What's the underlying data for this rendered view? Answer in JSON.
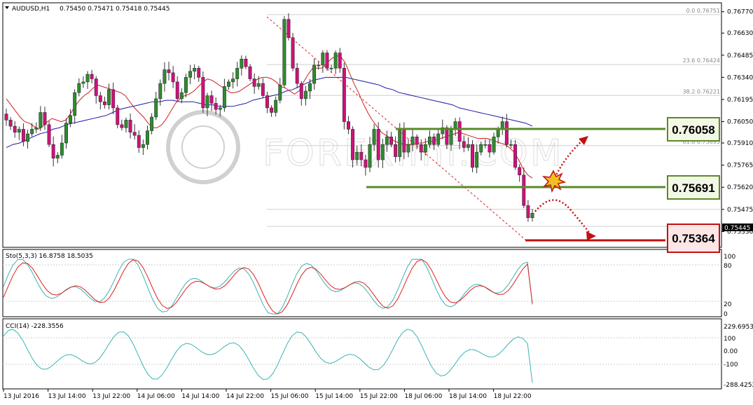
{
  "header": {
    "symbol_tf": "AUDUSD,H1",
    "ohlc": "0.75450 0.75471 0.75418 0.75445"
  },
  "watermark": "FOREXimf.COM",
  "levels": [
    {
      "label": "0.76058",
      "value": 0.76058,
      "role": "resistance",
      "color": "#5a8a2a"
    },
    {
      "label": "0.75691",
      "value": 0.75691,
      "role": "support",
      "color": "#5a8a2a"
    },
    {
      "label": "0.75364",
      "value": 0.75364,
      "role": "target",
      "color": "#c01010"
    }
  ],
  "current_price_label": "0.75445",
  "fibonacci": [
    {
      "label": "0.0  0.76751",
      "value": 0.76751
    },
    {
      "label": "23.6  0.76424",
      "value": 0.76424
    },
    {
      "label": "38.2  0.76221",
      "value": 0.76221
    },
    {
      "label": "61.8  0.75893",
      "value": 0.75893
    }
  ],
  "stochastic": {
    "label": "Sto(5,3,3) 16.8758 18.5035",
    "levels": [
      "100",
      "80",
      "20",
      "0"
    ]
  },
  "cci": {
    "label": "CCI(14) -228.3556",
    "levels": [
      "229.6953",
      "100",
      "0.00",
      "-100",
      "-288.4252"
    ]
  },
  "chart_data": {
    "type": "candlestick",
    "title": "AUDUSD,H1",
    "ylim": [
      0.7524,
      0.7681
    ],
    "y_ticks": [
      "0.76770",
      "0.76630",
      "0.76485",
      "0.76340",
      "0.76195",
      "0.76050",
      "0.75910",
      "0.75765",
      "0.75620",
      "0.75475",
      "0.75330"
    ],
    "x_ticks": [
      "13 Jul 2016",
      "13 Jul 14:00",
      "13 Jul 22:00",
      "14 Jul 06:00",
      "14 Jul 14:00",
      "14 Jul 22:00",
      "15 Jul 06:00",
      "15 Jul 14:00",
      "15 Jul 22:00",
      "18 Jul 06:00",
      "18 Jul 14:00",
      "18 Jul 22:00"
    ],
    "series": [
      {
        "name": "Close",
        "values": [
          0.7606,
          0.7602,
          0.7598,
          0.76,
          0.7592,
          0.7597,
          0.76,
          0.7601,
          0.7611,
          0.7603,
          0.759,
          0.7581,
          0.7583,
          0.7591,
          0.7604,
          0.7609,
          0.7624,
          0.763,
          0.7631,
          0.7636,
          0.7633,
          0.7622,
          0.7618,
          0.7616,
          0.7626,
          0.7614,
          0.7603,
          0.7601,
          0.7606,
          0.7598,
          0.7596,
          0.7588,
          0.759,
          0.7599,
          0.7608,
          0.762,
          0.763,
          0.7639,
          0.7637,
          0.7631,
          0.762,
          0.7624,
          0.7634,
          0.7638,
          0.764,
          0.7634,
          0.7614,
          0.7622,
          0.7617,
          0.7613,
          0.7614,
          0.7628,
          0.7631,
          0.7633,
          0.764,
          0.7646,
          0.7641,
          0.7633,
          0.7628,
          0.763,
          0.7622,
          0.7614,
          0.7611,
          0.7619,
          0.7629,
          0.7672,
          0.766,
          0.764,
          0.763,
          0.762,
          0.7625,
          0.763,
          0.7642,
          0.7642,
          0.765,
          0.764,
          0.764,
          0.765,
          0.764,
          0.7605,
          0.76,
          0.758,
          0.7585,
          0.758,
          0.7575,
          0.759,
          0.76,
          0.758,
          0.759,
          0.7595,
          0.759,
          0.7582,
          0.76,
          0.7585,
          0.759,
          0.7595,
          0.759,
          0.7585,
          0.759,
          0.7595,
          0.759,
          0.7597,
          0.7601,
          0.759,
          0.76,
          0.7605,
          0.7592,
          0.7588,
          0.759,
          0.7575,
          0.7585,
          0.759,
          0.759,
          0.7585,
          0.7595,
          0.76,
          0.7605,
          0.759,
          0.759,
          0.7575,
          0.757,
          0.755,
          0.7542,
          0.7545
        ]
      },
      {
        "name": "MA fast",
        "values": [
          0.762,
          0.7616,
          0.7612,
          0.7608,
          0.7605,
          0.7604,
          0.7602,
          0.76,
          0.7602,
          0.7605,
          0.7607,
          0.7606,
          0.7605,
          0.7606,
          0.761,
          0.7615,
          0.7619,
          0.7622,
          0.7624,
          0.7627,
          0.7629,
          0.7628,
          0.7627,
          0.7626,
          0.7625,
          0.7624,
          0.7622,
          0.7618,
          0.7614,
          0.7611,
          0.7608,
          0.7604,
          0.7601,
          0.7601,
          0.7603,
          0.7607,
          0.7612,
          0.7617,
          0.762,
          0.7622,
          0.7623,
          0.7625,
          0.7628,
          0.7631,
          0.7633,
          0.7632,
          0.763,
          0.7628,
          0.7626,
          0.7624,
          0.7624,
          0.7625,
          0.7627,
          0.7629,
          0.7631,
          0.7633,
          0.7634,
          0.7634,
          0.7633,
          0.7631,
          0.7628,
          0.7627,
          0.7625,
          0.7623,
          0.7625,
          0.7631,
          0.7636,
          0.764,
          0.764,
          0.764,
          0.7643,
          0.7646,
          0.7648,
          0.7648,
          0.7644,
          0.7637,
          0.763,
          0.7624,
          0.7617,
          0.7611,
          0.7606,
          0.7602,
          0.7598,
          0.7596,
          0.7594,
          0.7592,
          0.7591,
          0.759,
          0.759,
          0.759,
          0.7591,
          0.7591,
          0.7592,
          0.7592,
          0.7593,
          0.7594,
          0.7595,
          0.7596,
          0.7597,
          0.7598,
          0.7597,
          0.7596,
          0.7595,
          0.7594,
          0.7594,
          0.7594,
          0.7593,
          0.7592,
          0.7591,
          0.759,
          0.7588,
          0.7585,
          0.758,
          0.7574,
          0.757,
          0.7568
        ]
      },
      {
        "name": "MA slow",
        "values": [
          0.7588,
          0.759,
          0.7591,
          0.7593,
          0.7595,
          0.7597,
          0.7598,
          0.76,
          0.7601,
          0.7603,
          0.7604,
          0.7605,
          0.7606,
          0.7607,
          0.7608,
          0.7609,
          0.7611,
          0.7613,
          0.7614,
          0.7615,
          0.7616,
          0.7617,
          0.7618,
          0.7618,
          0.7619,
          0.7619,
          0.7618,
          0.7618,
          0.7618,
          0.7617,
          0.7616,
          0.7616,
          0.7615,
          0.7615,
          0.7615,
          0.7616,
          0.7617,
          0.7619,
          0.762,
          0.7621,
          0.7622,
          0.7623,
          0.7625,
          0.7626,
          0.7628,
          0.763,
          0.7632,
          0.7633,
          0.7634,
          0.7634,
          0.7634,
          0.7634,
          0.7633,
          0.7632,
          0.7631,
          0.763,
          0.7629,
          0.7627,
          0.7626,
          0.7624,
          0.7623,
          0.7622,
          0.7621,
          0.762,
          0.7619,
          0.7618,
          0.7617,
          0.7616,
          0.7614,
          0.7613,
          0.7612,
          0.7611,
          0.761,
          0.7609,
          0.7608,
          0.7607,
          0.7606,
          0.7605,
          0.7604,
          0.7602
        ]
      }
    ]
  }
}
